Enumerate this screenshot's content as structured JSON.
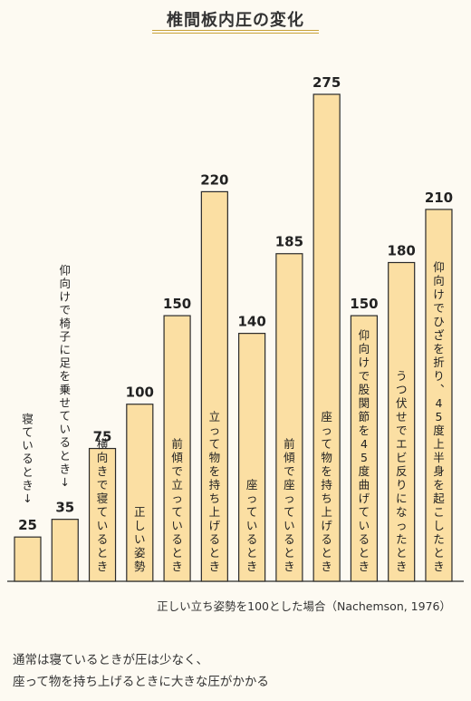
{
  "colors": {
    "bar_fill": "#fbdfa3",
    "bar_stroke": "#2a2a2a",
    "accent_rule": "#c9a23a",
    "background": "#fdfaf2",
    "text": "#222222"
  },
  "chart_data": {
    "type": "bar",
    "title": "椎間板内圧の変化",
    "categories": [
      "寝ているとき",
      "仰向けで椅子に足を乗せているとき",
      "横向きで寝ているとき",
      "正しい姿勢",
      "前傾で立っているとき",
      "立って物を持ち上げるとき",
      "座っているとき",
      "前傾で座っているとき",
      "座って物を持ち上げるとき",
      "仰向けで股関節を45度曲げているとき",
      "うつ伏せでエビ反りになったとき",
      "仰向けでひざを折り、45度上半身を起こしたとき"
    ],
    "values": [
      25,
      35,
      75,
      100,
      150,
      220,
      140,
      185,
      275,
      150,
      180,
      210
    ],
    "value_labels": [
      "25",
      "35",
      "75",
      "100",
      "150",
      "220",
      "140",
      "185",
      "275",
      "150",
      "180",
      "210"
    ],
    "outside_labels": [
      "寝ているとき ↓",
      "仰向けで椅子に足を乗せているとき ↓"
    ],
    "ylim": [
      0,
      275
    ],
    "grid": false,
    "legend": "none",
    "xlabel": "",
    "ylabel": ""
  },
  "note": "正しい立ち姿勢を100とした場合（Nachemson, 1976）",
  "caption": {
    "line1": "通常は寝ているときが圧は少なく、",
    "line2": "座って物を持ち上げるときに大きな圧がかかる"
  }
}
